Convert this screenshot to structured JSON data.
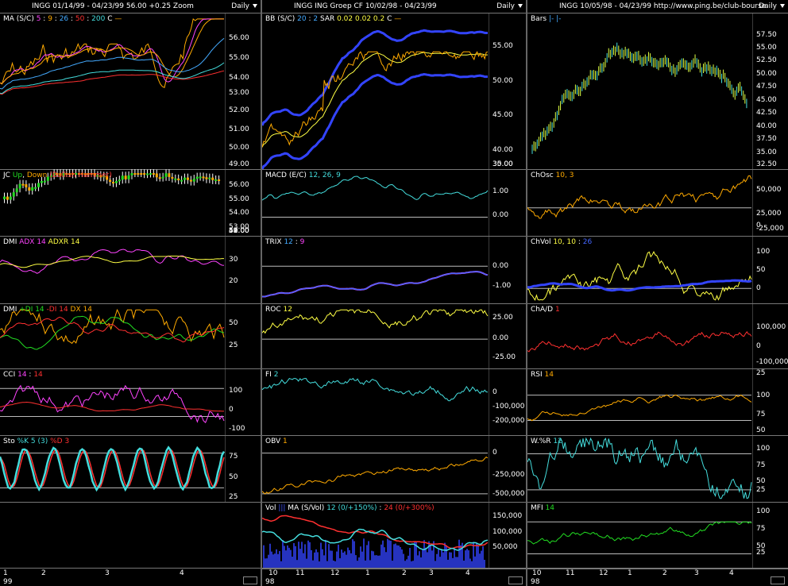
{
  "windows": [
    {
      "id": "w1",
      "title": "INGG  01/14/99 - 04/23/99   56.00  +0.25   Zoom",
      "period": "Daily",
      "xlabels": [
        "1",
        "2",
        "3",
        "4"
      ],
      "xyear": "99",
      "panes": [
        {
          "label": [
            [
              "MA (S/C) ",
              "#fff"
            ],
            [
              "5",
              "#ff44ff"
            ],
            [
              " : ",
              "#fff"
            ],
            [
              "9",
              "#ffaa00"
            ],
            [
              " : ",
              "#fff"
            ],
            [
              "26",
              "#44aaff"
            ],
            [
              " : ",
              "#fff"
            ],
            [
              "50",
              "#ff3030"
            ],
            [
              " : ",
              "#fff"
            ],
            [
              "200",
              "#4dd"
            ],
            [
              "   C ",
              "#fff"
            ],
            [
              "—",
              "#ffaa00"
            ]
          ],
          "ticks": [
            "56.00",
            "55.00",
            "54.00",
            "53.00",
            "52.00",
            "51.00",
            "50.00",
            "49.00"
          ]
        },
        {
          "label": [
            [
              "JC ",
              "#fff"
            ],
            [
              "Up",
              "#22dd22"
            ],
            [
              ", ",
              "#fff"
            ],
            [
              "Down",
              "#ffaa00"
            ],
            [
              "  (Bullish Hammer)",
              "#ff3030"
            ]
          ],
          "ticks": [
            "56.00",
            "55.00",
            "54.00",
            "53.00",
            "52.00",
            "51.00",
            "50.00",
            "49.00",
            "48.00"
          ]
        },
        {
          "label": [
            [
              "DMI ",
              "#fff"
            ],
            [
              "ADX 14",
              "#ff44ff"
            ],
            [
              "  ADXR 14",
              "#ffff44"
            ]
          ],
          "ticks": [
            "30",
            "20"
          ]
        },
        {
          "label": [
            [
              "DMI ",
              "#fff"
            ],
            [
              "+DI 14",
              "#22dd22"
            ],
            [
              "  -DI 14",
              "#ff3030"
            ],
            [
              "  DX 14",
              "#ffaa00"
            ]
          ],
          "ticks": [
            "50",
            "25"
          ]
        },
        {
          "label": [
            [
              "CCI ",
              "#fff"
            ],
            [
              "14",
              "#ff44ff"
            ],
            [
              " : ",
              "#fff"
            ],
            [
              "14",
              "#ff3030"
            ]
          ],
          "ticks": [
            "100",
            "0",
            "-100"
          ]
        },
        {
          "label": [
            [
              "Sto ",
              "#fff"
            ],
            [
              "%K 5 (3)",
              "#44dddd"
            ],
            [
              "  %D 3",
              "#ff3030"
            ]
          ],
          "ticks": [
            "75",
            "50",
            "25"
          ]
        }
      ]
    },
    {
      "id": "w2",
      "title": "INGG   ING Groep CF   10/02/98 - 04/23/99",
      "period": "Daily",
      "xlabels": [
        "10",
        "11",
        "12",
        "1",
        "2",
        "3",
        "4"
      ],
      "xyear": "98",
      "panes": [
        {
          "label": [
            [
              "BB (S/C) ",
              "#fff"
            ],
            [
              "20",
              "#44aaff"
            ],
            [
              " : ",
              "#fff"
            ],
            [
              "2",
              "#44aaff"
            ],
            [
              "    SAR  ",
              "#fff"
            ],
            [
              "0.02",
              "#ffff44"
            ],
            [
              "  0.02  ",
              "#ffff44"
            ],
            [
              "0.2",
              "#ffff44"
            ],
            [
              "    C ",
              "#fff"
            ],
            [
              "—",
              "#ffaa00"
            ]
          ],
          "ticks": [
            "55.00",
            "50.00",
            "45.00",
            "40.00",
            "35.00",
            "30.00"
          ]
        },
        {
          "label": [
            [
              "MACD (E/C) ",
              "#fff"
            ],
            [
              "12, 26, 9",
              "#44dddd"
            ]
          ],
          "ticks": [
            "1.00",
            "0.00"
          ]
        },
        {
          "label": [
            [
              "TRIX ",
              "#fff"
            ],
            [
              "12",
              "#44aaff"
            ],
            [
              " : ",
              "#fff"
            ],
            [
              "9",
              "#ff44ff"
            ]
          ],
          "ticks": [
            "0.00",
            "-1.00"
          ]
        },
        {
          "label": [
            [
              "ROC ",
              "#fff"
            ],
            [
              "12",
              "#ffff44"
            ]
          ],
          "ticks": [
            "25.00",
            "0.00",
            "-25.00"
          ]
        },
        {
          "label": [
            [
              "FI ",
              "#fff"
            ],
            [
              "2",
              "#44dddd"
            ]
          ],
          "ticks": [
            "0",
            "-100,000",
            "-200,000"
          ]
        },
        {
          "label": [
            [
              "OBV ",
              "#fff"
            ],
            [
              "1",
              "#ffaa00"
            ]
          ],
          "ticks": [
            "0",
            "-250,000",
            "-500,000"
          ]
        },
        {
          "label": [
            [
              "Vol ",
              "#fff"
            ],
            [
              "|||",
              "#4455ff"
            ],
            [
              "   MA (S/Vol)  ",
              "#fff"
            ],
            [
              "12 (0/+150%)",
              "#44dddd"
            ],
            [
              " : ",
              "#fff"
            ],
            [
              "24 (0/+300%)",
              "#ff3030"
            ]
          ],
          "ticks": [
            "150,000",
            "100,000",
            "50,000"
          ]
        }
      ]
    },
    {
      "id": "w3",
      "title": "INGG   10/05/98 - 04/23/99     http://www.ping.be/club-bourse",
      "period": "Daily",
      "xlabels": [
        "10",
        "11",
        "12",
        "1",
        "2",
        "3",
        "4"
      ],
      "xyear": "98",
      "panes": [
        {
          "label": [
            [
              "Bars ",
              "#fff"
            ],
            [
              "|-  |-",
              "#44aaff"
            ]
          ],
          "ticks": [
            "57.50",
            "55.00",
            "52.50",
            "50.00",
            "47.50",
            "45.00",
            "42.50",
            "40.00",
            "37.50",
            "35.00",
            "32.50"
          ]
        },
        {
          "label": [
            [
              "ChOsc  ",
              "#fff"
            ],
            [
              "10, 3",
              "#ffaa00"
            ]
          ],
          "ticks": [
            "50,000",
            "25,000",
            "0",
            "-25,000"
          ]
        },
        {
          "label": [
            [
              "ChVol  ",
              "#fff"
            ],
            [
              "10, 10",
              "#ffff44"
            ],
            [
              " : ",
              "#fff"
            ],
            [
              "26",
              "#4466ff"
            ]
          ],
          "ticks": [
            "100",
            "50",
            "0"
          ]
        },
        {
          "label": [
            [
              "ChA/D  ",
              "#fff"
            ],
            [
              "1",
              "#ff3030"
            ]
          ],
          "ticks": [
            "100,000",
            "0",
            "-100,000"
          ]
        },
        {
          "label": [
            [
              "RSI  ",
              "#fff"
            ],
            [
              "14",
              "#ffaa00"
            ]
          ],
          "ticks": [
            "100",
            "75",
            "50",
            "25"
          ]
        },
        {
          "label": [
            [
              "W.%R  ",
              "#fff"
            ],
            [
              "12",
              "#44dddd"
            ]
          ],
          "ticks": [
            "100",
            "75",
            "50",
            "25"
          ]
        },
        {
          "label": [
            [
              "MFI  ",
              "#fff"
            ],
            [
              "14",
              "#22dd22"
            ]
          ],
          "ticks": [
            "100",
            "75",
            "50",
            "25"
          ]
        }
      ]
    }
  ]
}
